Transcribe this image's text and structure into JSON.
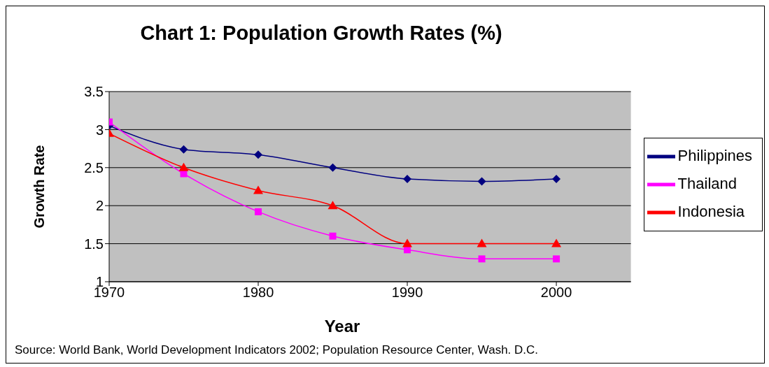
{
  "chart_data": {
    "type": "line",
    "title": "Chart 1: Population Growth Rates (%)",
    "xlabel": "Year",
    "ylabel": "Growth Rate",
    "x": [
      1970,
      1975,
      1980,
      1985,
      1990,
      1995,
      2000
    ],
    "series": [
      {
        "name": "Philippines",
        "color": "#000080",
        "marker": "diamond",
        "values": [
          3.05,
          2.74,
          2.67,
          2.5,
          2.35,
          2.32,
          2.35
        ]
      },
      {
        "name": "Thailand",
        "color": "#ff00ff",
        "marker": "square",
        "values": [
          3.1,
          2.42,
          1.92,
          1.6,
          1.42,
          1.3,
          1.3
        ]
      },
      {
        "name": "Indonesia",
        "color": "#ff0000",
        "marker": "triangle",
        "values": [
          2.95,
          2.5,
          2.2,
          2.0,
          1.5,
          1.5,
          1.5
        ]
      }
    ],
    "xlim": [
      1970,
      2005
    ],
    "xticks": [
      1970,
      1980,
      1990,
      2000
    ],
    "ylim": [
      1,
      3.5
    ],
    "yticks": [
      1,
      1.5,
      2,
      2.5,
      3,
      3.5
    ],
    "grid": "y",
    "legend": "right",
    "line_style": "solid",
    "annotations": [
      "Source: World Bank, World Development Indicators 2002; Population Resource Center, Wash. D.C."
    ]
  }
}
